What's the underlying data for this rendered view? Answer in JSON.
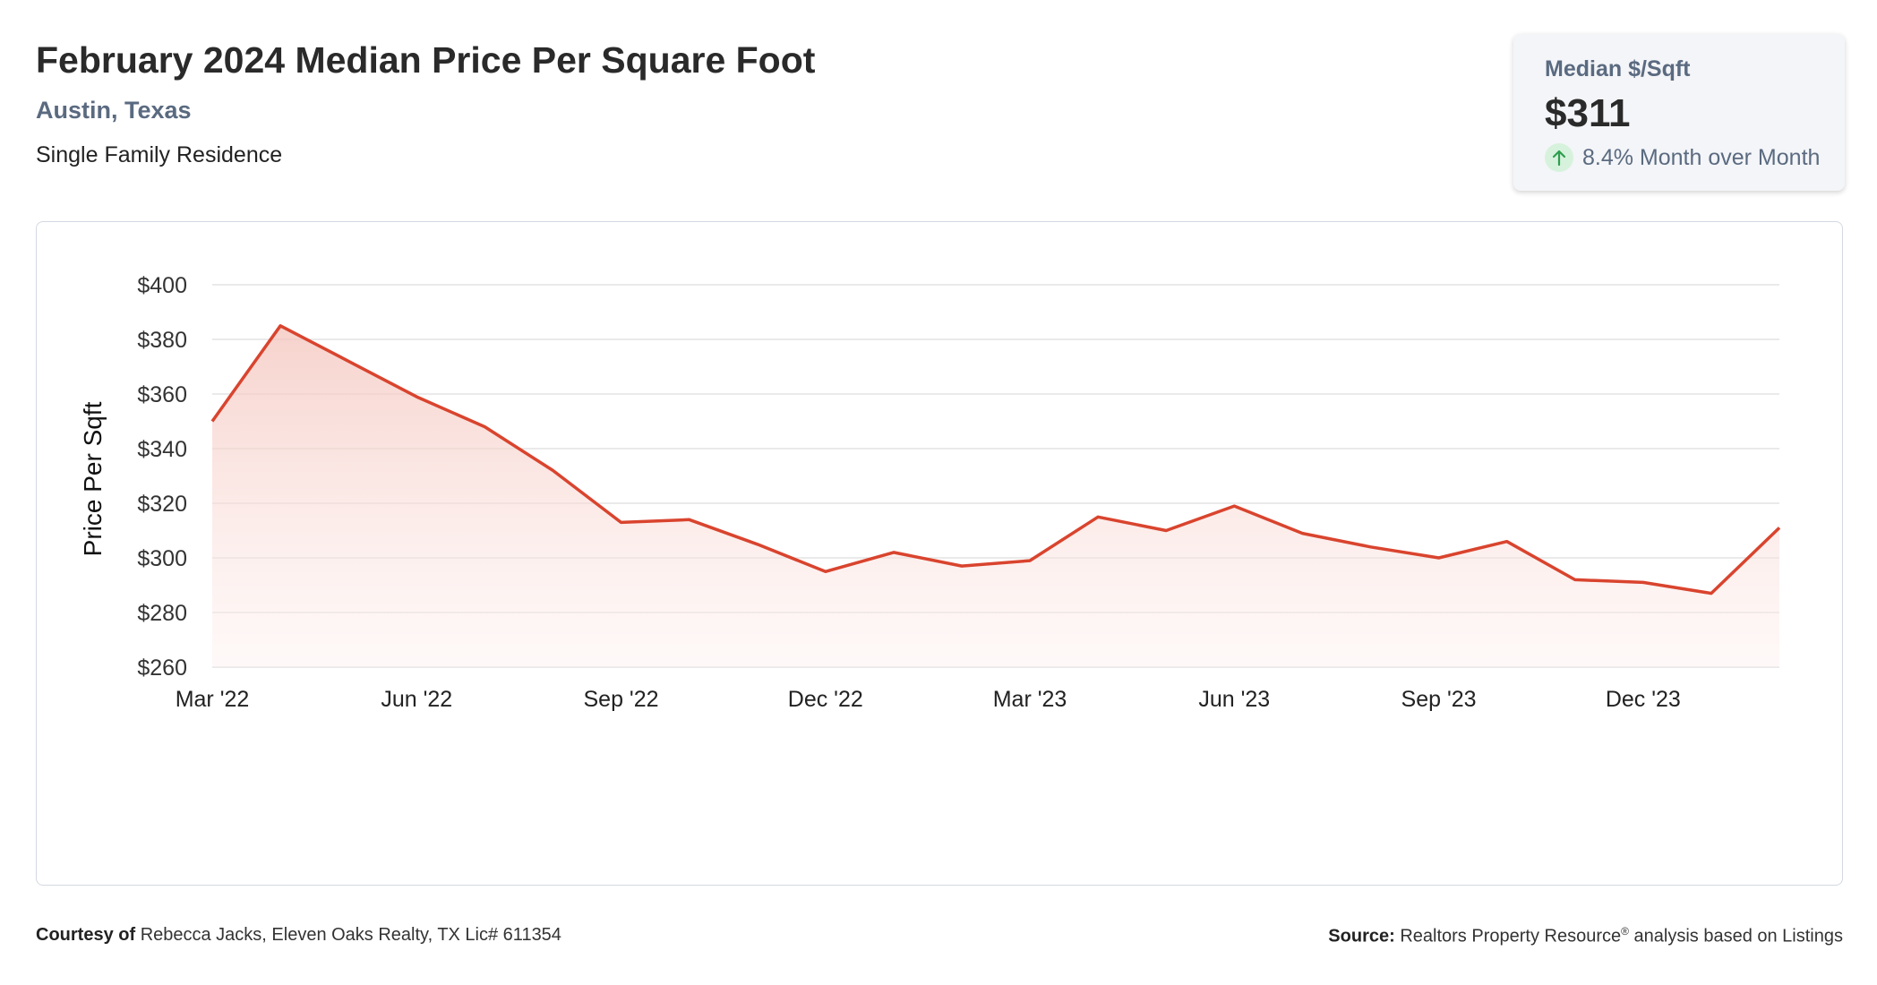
{
  "header": {
    "title": "February 2024 Median Price Per Square Foot",
    "location": "Austin, Texas",
    "property_type": "Single Family Residence"
  },
  "stat_card": {
    "label": "Median $/Sqft",
    "value": "$311",
    "change_text": "8.4% Month over Month",
    "change_icon": "arrow-up-icon",
    "change_color": "#2e9e4f"
  },
  "footer": {
    "courtesy_label": "Courtesy of",
    "courtesy_text": "Rebecca Jacks, Eleven Oaks Realty, TX Lic# 611354",
    "source_label": "Source:",
    "source_text_pre": "Realtors Property Resource",
    "source_sup": "®",
    "source_text_post": " analysis based on Listings"
  },
  "colors": {
    "line": "#d9442e",
    "fill": "#f6d2cc",
    "grid": "#e3e3e3"
  },
  "chart_data": {
    "type": "area",
    "title": "February 2024 Median Price Per Square Foot",
    "xlabel": "",
    "ylabel": "Price Per Sqft",
    "ylim": [
      260,
      400
    ],
    "yticks": [
      "$400",
      "$380",
      "$360",
      "$340",
      "$320",
      "$300",
      "$280",
      "$260"
    ],
    "ytick_values": [
      400,
      380,
      360,
      340,
      320,
      300,
      280,
      260
    ],
    "xtick_labels": [
      "Mar '22",
      "Jun '22",
      "Sep '22",
      "Dec '22",
      "Mar '23",
      "Jun '23",
      "Sep '23",
      "Dec '23"
    ],
    "xtick_months": [
      "2022-03",
      "2022-06",
      "2022-09",
      "2022-12",
      "2023-03",
      "2023-06",
      "2023-09",
      "2023-12"
    ],
    "grid": true,
    "legend": "none",
    "x": [
      "2022-03",
      "2022-04",
      "2022-05",
      "2022-06",
      "2022-07",
      "2022-08",
      "2022-09",
      "2022-10",
      "2022-11",
      "2022-12",
      "2023-01",
      "2023-02",
      "2023-03",
      "2023-04",
      "2023-05",
      "2023-06",
      "2023-07",
      "2023-08",
      "2023-09",
      "2023-10",
      "2023-11",
      "2023-12",
      "2024-01",
      "2024-02"
    ],
    "series": [
      {
        "values": [
          350,
          385,
          372,
          359,
          348,
          332,
          313,
          314,
          305,
          295,
          302,
          297,
          299,
          315,
          310,
          319,
          309,
          304,
          300,
          306,
          292,
          291,
          287,
          311
        ]
      }
    ]
  }
}
